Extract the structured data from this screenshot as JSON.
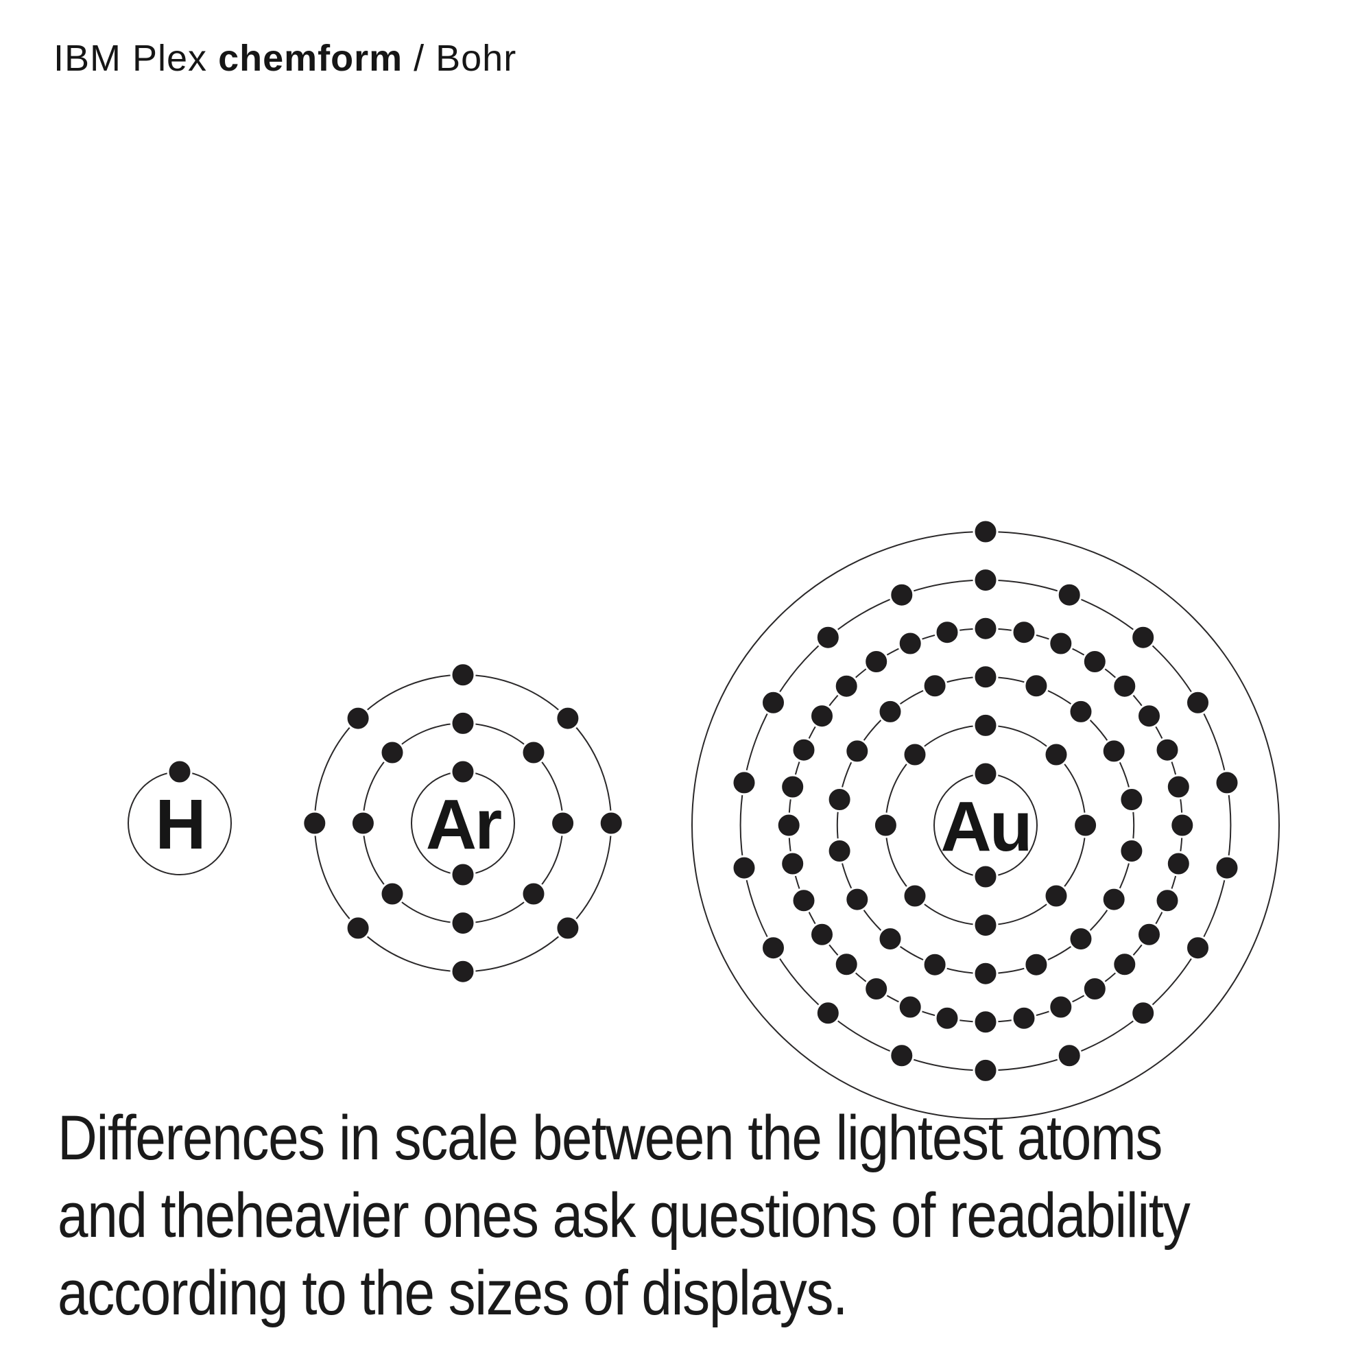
{
  "colors": {
    "background": "#ffffff",
    "ink": "#2a2829",
    "dot": "#1f1d1e",
    "text": "#161616"
  },
  "header": {
    "family": "IBM Plex ",
    "feature": "chemform",
    "style": " / Bohr"
  },
  "atoms": [
    {
      "name": "hydrogen",
      "symbol": "H",
      "electrons_per_shell": [
        1
      ],
      "total_electrons": 1
    },
    {
      "name": "argon",
      "symbol": "Ar",
      "electrons_per_shell": [
        2,
        8,
        8
      ],
      "total_electrons": 18
    },
    {
      "name": "gold",
      "symbol": "Au",
      "electrons_per_shell": [
        2,
        8,
        18,
        32,
        18,
        1
      ],
      "total_electrons": 79
    }
  ],
  "caption": {
    "lines": [
      "Differences in scale between the lightest atoms",
      "and theheavier ones ask questions of readability",
      "according to the sizes of displays."
    ]
  }
}
